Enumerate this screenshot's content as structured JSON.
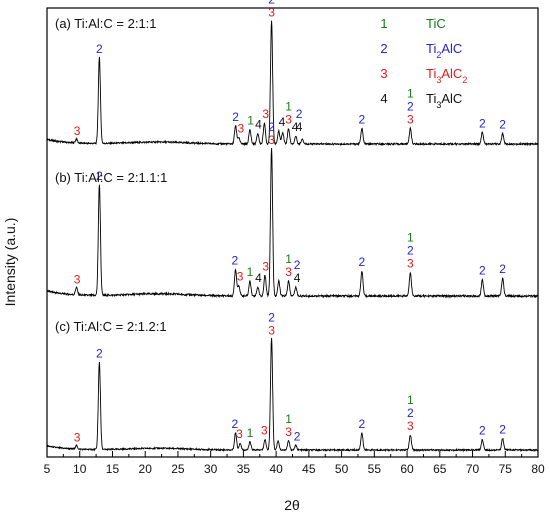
{
  "chart_data": {
    "type": "line",
    "xlabel": "2θ",
    "ylabel": "Intensity (a.u.)",
    "xlim": [
      5,
      80
    ],
    "xticks": [
      "5",
      "10",
      "15",
      "20",
      "25",
      "30",
      "35",
      "40",
      "45",
      "50",
      "55",
      "60",
      "65",
      "70",
      "75",
      "80"
    ],
    "grid": false,
    "legend_placement": "top-right",
    "legend": [
      {
        "code": "1",
        "label": "TiC",
        "color": "#1a7a1a"
      },
      {
        "code": "2",
        "label": "Ti2AlC",
        "color": "#2323d6"
      },
      {
        "code": "3",
        "label": "Ti3AlC2",
        "color": "#e01b1b"
      },
      {
        "code": "4",
        "label": "Ti3AlC",
        "color": "#111111"
      }
    ],
    "series": [
      {
        "name": "(a) Ti:Al:C = 2:1:1",
        "peaks": [
          [
            9.5,
            0.03
          ],
          [
            13.0,
            0.66
          ],
          [
            33.8,
            0.14
          ],
          [
            34.3,
            0.05
          ],
          [
            36.0,
            0.11
          ],
          [
            37.2,
            0.08
          ],
          [
            38.2,
            0.16
          ],
          [
            39.3,
            0.95
          ],
          [
            40.4,
            0.1
          ],
          [
            41.0,
            0.09
          ],
          [
            41.9,
            0.12
          ],
          [
            43.0,
            0.06
          ],
          [
            44.0,
            0.04
          ],
          [
            53.1,
            0.12
          ],
          [
            60.5,
            0.12
          ],
          [
            71.5,
            0.09
          ],
          [
            74.6,
            0.08
          ]
        ],
        "markers": [
          {
            "x": 9.6,
            "lines": [
              "3"
            ]
          },
          {
            "x": 13.0,
            "lines": [
              "2"
            ]
          },
          {
            "x": 33.8,
            "lines": [
              "2"
            ]
          },
          {
            "x": 34.6,
            "lines": [
              "3"
            ]
          },
          {
            "x": 36.1,
            "lines": [
              "1"
            ]
          },
          {
            "x": 37.3,
            "lines": [
              "4"
            ]
          },
          {
            "x": 38.4,
            "lines": [
              "3"
            ]
          },
          {
            "x": 39.3,
            "lines": [
              "2",
              "3"
            ]
          },
          {
            "x": 40.9,
            "lines": [
              "4"
            ]
          },
          {
            "x": 41.9,
            "lines": [
              "1",
              "3"
            ]
          },
          {
            "x": 42.9,
            "lines": [
              "4"
            ]
          },
          {
            "x": 43.5,
            "lines": [
              "2",
              "4"
            ]
          },
          {
            "x": 53.1,
            "lines": [
              "2"
            ]
          },
          {
            "x": 60.5,
            "lines": [
              "1",
              "2",
              "3"
            ]
          },
          {
            "x": 71.5,
            "lines": [
              "2"
            ]
          },
          {
            "x": 74.6,
            "lines": [
              "2"
            ]
          }
        ]
      },
      {
        "name": "(b) Ti:Al:C = 2:1.1:1",
        "peaks": [
          [
            9.5,
            0.05
          ],
          [
            13.0,
            0.75
          ],
          [
            33.8,
            0.18
          ],
          [
            34.3,
            0.07
          ],
          [
            36.0,
            0.1
          ],
          [
            37.2,
            0.06
          ],
          [
            38.3,
            0.14
          ],
          [
            39.3,
            1.0
          ],
          [
            40.4,
            0.1
          ],
          [
            41.9,
            0.1
          ],
          [
            43.0,
            0.06
          ],
          [
            53.1,
            0.17
          ],
          [
            60.5,
            0.16
          ],
          [
            71.5,
            0.11
          ],
          [
            74.6,
            0.12
          ]
        ],
        "markers": [
          {
            "x": 9.6,
            "lines": [
              "3"
            ]
          },
          {
            "x": 13.0,
            "lines": [
              "2"
            ]
          },
          {
            "x": 33.7,
            "lines": [
              "2"
            ]
          },
          {
            "x": 34.5,
            "lines": [
              "3"
            ]
          },
          {
            "x": 36.0,
            "lines": [
              "1"
            ]
          },
          {
            "x": 37.3,
            "lines": [
              "4"
            ]
          },
          {
            "x": 38.4,
            "lines": [
              "3"
            ]
          },
          {
            "x": 39.3,
            "lines": [
              "2",
              "3"
            ]
          },
          {
            "x": 41.9,
            "lines": [
              "1",
              "3"
            ]
          },
          {
            "x": 43.2,
            "lines": [
              "2",
              "4"
            ]
          },
          {
            "x": 53.1,
            "lines": [
              "2"
            ]
          },
          {
            "x": 60.5,
            "lines": [
              "1",
              "2",
              "3"
            ]
          },
          {
            "x": 71.5,
            "lines": [
              "2"
            ]
          },
          {
            "x": 74.6,
            "lines": [
              "2"
            ]
          }
        ]
      },
      {
        "name": "(c) Ti:Al:C = 2:1.2:1",
        "peaks": [
          [
            9.5,
            0.03
          ],
          [
            13.0,
            0.76
          ],
          [
            33.8,
            0.15
          ],
          [
            34.5,
            0.06
          ],
          [
            36.0,
            0.07
          ],
          [
            38.3,
            0.09
          ],
          [
            39.3,
            0.97
          ],
          [
            40.3,
            0.08
          ],
          [
            41.9,
            0.08
          ],
          [
            43.0,
            0.04
          ],
          [
            53.1,
            0.15
          ],
          [
            60.5,
            0.13
          ],
          [
            71.5,
            0.09
          ],
          [
            74.6,
            0.1
          ]
        ],
        "markers": [
          {
            "x": 9.6,
            "lines": [
              "3"
            ]
          },
          {
            "x": 13.0,
            "lines": [
              "2"
            ]
          },
          {
            "x": 33.7,
            "lines": [
              "2"
            ]
          },
          {
            "x": 34.4,
            "lines": [
              "3"
            ]
          },
          {
            "x": 36.0,
            "lines": [
              "1"
            ]
          },
          {
            "x": 38.2,
            "lines": [
              "3"
            ]
          },
          {
            "x": 39.3,
            "lines": [
              "2",
              "3"
            ]
          },
          {
            "x": 41.9,
            "lines": [
              "1",
              "3"
            ]
          },
          {
            "x": 43.2,
            "lines": [
              "2"
            ]
          },
          {
            "x": 53.1,
            "lines": [
              "2"
            ]
          },
          {
            "x": 60.5,
            "lines": [
              "1",
              "2",
              "3"
            ]
          },
          {
            "x": 71.5,
            "lines": [
              "2"
            ]
          },
          {
            "x": 74.6,
            "lines": [
              "2"
            ]
          }
        ]
      }
    ]
  }
}
